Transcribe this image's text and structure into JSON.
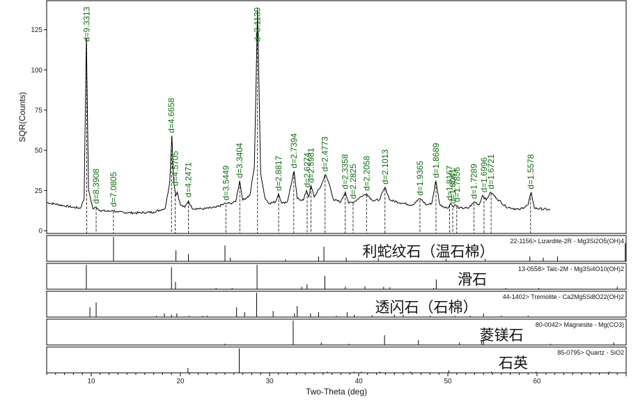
{
  "chart_data": {
    "type": "line",
    "xlabel": "Two-Theta (deg)",
    "ylabel": "SQR(Counts)",
    "xlim": [
      5,
      70
    ],
    "ylim": [
      0,
      140
    ],
    "x_ticks": [
      10,
      20,
      30,
      40,
      50,
      60
    ],
    "y_ticks": [
      0,
      25,
      50,
      75,
      100,
      125
    ],
    "pattern": [
      [
        5.0,
        17.5
      ],
      [
        6.0,
        16.5
      ],
      [
        7.0,
        15.5
      ],
      [
        8.0,
        14.5
      ],
      [
        8.8,
        14.0
      ],
      [
        9.2,
        20
      ],
      [
        9.45,
        120
      ],
      [
        9.7,
        25
      ],
      [
        10.2,
        13.5
      ],
      [
        10.55,
        14.8
      ],
      [
        11,
        12.5
      ],
      [
        12,
        12
      ],
      [
        12.4,
        12.6
      ],
      [
        13,
        11.5
      ],
      [
        15,
        11
      ],
      [
        17,
        11.5
      ],
      [
        18.3,
        14
      ],
      [
        18.8,
        30
      ],
      [
        19.05,
        59
      ],
      [
        19.25,
        30
      ],
      [
        19.5,
        22
      ],
      [
        19.65,
        24
      ],
      [
        20.0,
        16
      ],
      [
        20.5,
        14.5
      ],
      [
        20.9,
        18.5
      ],
      [
        21.3,
        14
      ],
      [
        22.5,
        13.5
      ],
      [
        24,
        14.5
      ],
      [
        25.1,
        17
      ],
      [
        25.6,
        17
      ],
      [
        26.2,
        18
      ],
      [
        26.65,
        31
      ],
      [
        27.0,
        19
      ],
      [
        27.8,
        22
      ],
      [
        28.3,
        40
      ],
      [
        28.65,
        138
      ],
      [
        29.0,
        36
      ],
      [
        29.5,
        20
      ],
      [
        30,
        17
      ],
      [
        30.7,
        18
      ],
      [
        31.0,
        23
      ],
      [
        31.4,
        17
      ],
      [
        32,
        18
      ],
      [
        32.75,
        37
      ],
      [
        33.1,
        20
      ],
      [
        33.8,
        19
      ],
      [
        34.15,
        25
      ],
      [
        34.4,
        21
      ],
      [
        34.65,
        28
      ],
      [
        35.0,
        21
      ],
      [
        35.8,
        28
      ],
      [
        36.25,
        35
      ],
      [
        36.7,
        29
      ],
      [
        37.2,
        19
      ],
      [
        38.0,
        18
      ],
      [
        38.5,
        24
      ],
      [
        38.9,
        17
      ],
      [
        39.5,
        18
      ],
      [
        40.2,
        21
      ],
      [
        40.9,
        23
      ],
      [
        41.5,
        19
      ],
      [
        42.3,
        19
      ],
      [
        42.95,
        27
      ],
      [
        43.5,
        19
      ],
      [
        45,
        17
      ],
      [
        46.0,
        16
      ],
      [
        46.9,
        20
      ],
      [
        47.6,
        16
      ],
      [
        48.2,
        17
      ],
      [
        48.65,
        31
      ],
      [
        49.1,
        16
      ],
      [
        50.0,
        14
      ],
      [
        50.3,
        17
      ],
      [
        50.55,
        15
      ],
      [
        50.85,
        16
      ],
      [
        51.3,
        14
      ],
      [
        52.3,
        14
      ],
      [
        53.0,
        18
      ],
      [
        53.5,
        16
      ],
      [
        53.9,
        22
      ],
      [
        54.3,
        19
      ],
      [
        54.8,
        24
      ],
      [
        55.5,
        20
      ],
      [
        56.5,
        15
      ],
      [
        58,
        13
      ],
      [
        59.0,
        16
      ],
      [
        59.35,
        24
      ],
      [
        59.7,
        14
      ],
      [
        61.5,
        13
      ]
    ],
    "peaks": [
      {
        "two_theta": 9.49,
        "d": "d=9.3313",
        "height": 120
      },
      {
        "two_theta": 10.55,
        "d": "d=8.3908",
        "height": 15
      },
      {
        "two_theta": 12.49,
        "d": "d=7.0805",
        "height": 13
      },
      {
        "two_theta": 19.0,
        "d": "d=4.6658",
        "height": 59
      },
      {
        "two_theta": 19.41,
        "d": "d=4.5705",
        "height": 26
      },
      {
        "two_theta": 20.9,
        "d": "d=4.2471",
        "height": 19
      },
      {
        "two_theta": 25.1,
        "d": "d=3.5449",
        "height": 17
      },
      {
        "two_theta": 26.66,
        "d": "d=3.3404",
        "height": 31
      },
      {
        "two_theta": 28.65,
        "d": "d=3.1139",
        "height": 138
      },
      {
        "two_theta": 31.02,
        "d": "d=2.8817",
        "height": 23
      },
      {
        "two_theta": 32.72,
        "d": "d=2.7394",
        "height": 37
      },
      {
        "two_theta": 34.22,
        "d": "d=2.6274",
        "height": 25
      },
      {
        "two_theta": 34.64,
        "d": "d=2.5981",
        "height": 28
      },
      {
        "two_theta": 36.23,
        "d": "d=2.4773",
        "height": 35
      },
      {
        "two_theta": 38.49,
        "d": "d=2.3358",
        "height": 24
      },
      {
        "two_theta": 39.37,
        "d": "d=2.2825",
        "height": 18
      },
      {
        "two_theta": 40.88,
        "d": "d=2.2058",
        "height": 23
      },
      {
        "two_theta": 42.95,
        "d": "d=2.1013",
        "height": 27
      },
      {
        "two_theta": 46.87,
        "d": "d=1.9365",
        "height": 20
      },
      {
        "two_theta": 48.67,
        "d": "d=1.8689",
        "height": 31
      },
      {
        "two_theta": 50.2,
        "d": "d=1.8167",
        "height": 17
      },
      {
        "two_theta": 50.55,
        "d": "d=1.8041",
        "height": 15
      },
      {
        "two_theta": 51.0,
        "d": "d=1.7856",
        "height": 16
      },
      {
        "two_theta": 52.92,
        "d": "d=1.7289",
        "height": 18
      },
      {
        "two_theta": 54.06,
        "d": "d=1.6996",
        "height": 22
      },
      {
        "two_theta": 54.85,
        "d": "d=1.6721",
        "height": 24
      },
      {
        "two_theta": 59.28,
        "d": "d=1.5578",
        "height": 24
      }
    ],
    "reference_panels": [
      {
        "name": "利蛇纹石（温石棉）",
        "ref": "22-1156> Lizardite-2R - Mg3Si2O5(OH)4",
        "sticks": [
          [
            12.5,
            100
          ],
          [
            19.5,
            45
          ],
          [
            20.9,
            30
          ],
          [
            25.0,
            65
          ],
          [
            25.6,
            15
          ],
          [
            31.8,
            8
          ],
          [
            35.5,
            20
          ],
          [
            36.1,
            60
          ],
          [
            38.6,
            15
          ],
          [
            42.2,
            15
          ],
          [
            49.8,
            10
          ],
          [
            54.2,
            10
          ],
          [
            59.2,
            20
          ],
          [
            60.7,
            15
          ],
          [
            62.3,
            20
          ],
          [
            69.9,
            75
          ]
        ]
      },
      {
        "name": "滑石",
        "ref": "13-0558> Talc-2M - Mg3Si4O10(OH)2",
        "sticks": [
          [
            9.45,
            100
          ],
          [
            19.0,
            90
          ],
          [
            19.45,
            30
          ],
          [
            24.0,
            5
          ],
          [
            25.8,
            5
          ],
          [
            28.6,
            100
          ],
          [
            33.6,
            10
          ],
          [
            34.2,
            20
          ],
          [
            36.2,
            55
          ],
          [
            38.5,
            10
          ],
          [
            40.7,
            12
          ],
          [
            42.8,
            10
          ],
          [
            43.5,
            8
          ],
          [
            48.4,
            5
          ],
          [
            48.7,
            40
          ],
          [
            56.5,
            5
          ],
          [
            60.2,
            5
          ],
          [
            69.0,
            10
          ]
        ]
      },
      {
        "name": "透闪石（石棉）",
        "ref": "44-1402> Tremolite - Ca2Mg5Si8O22(OH)2",
        "sticks": [
          [
            9.85,
            40
          ],
          [
            10.55,
            60
          ],
          [
            17.3,
            5
          ],
          [
            18.2,
            15
          ],
          [
            19.0,
            10
          ],
          [
            19.6,
            15
          ],
          [
            21.0,
            5
          ],
          [
            22.5,
            5
          ],
          [
            23.0,
            5
          ],
          [
            26.3,
            40
          ],
          [
            27.2,
            20
          ],
          [
            28.55,
            100
          ],
          [
            30.4,
            25
          ],
          [
            32.8,
            15
          ],
          [
            33.1,
            45
          ],
          [
            34.6,
            15
          ],
          [
            35.5,
            20
          ],
          [
            37.5,
            5
          ],
          [
            38.7,
            20
          ],
          [
            39.5,
            10
          ],
          [
            41.5,
            8
          ],
          [
            44.0,
            10
          ],
          [
            45.0,
            10
          ],
          [
            48.0,
            5
          ],
          [
            50.8,
            5
          ],
          [
            52.5,
            5
          ],
          [
            54.0,
            15
          ],
          [
            56.0,
            5
          ],
          [
            59.0,
            5
          ]
        ]
      },
      {
        "name": "菱镁石",
        "ref": "80-0042> Magnesite - Mg(CO3)",
        "sticks": [
          [
            25.0,
            5
          ],
          [
            32.65,
            100
          ],
          [
            35.8,
            10
          ],
          [
            38.9,
            5
          ],
          [
            42.9,
            40
          ],
          [
            46.7,
            20
          ],
          [
            51.3,
            10
          ],
          [
            53.8,
            20
          ],
          [
            54.0,
            25
          ],
          [
            61.5,
            5
          ],
          [
            68.6,
            10
          ]
        ]
      },
      {
        "name": "石英",
        "ref": "85-0795> Quartz - SiO2",
        "sticks": [
          [
            20.85,
            20
          ],
          [
            26.6,
            100
          ],
          [
            36.5,
            5
          ],
          [
            39.5,
            5
          ],
          [
            40.3,
            5
          ],
          [
            42.4,
            5
          ],
          [
            45.8,
            5
          ],
          [
            50.1,
            10
          ],
          [
            54.9,
            5
          ],
          [
            59.9,
            5
          ],
          [
            68.1,
            5
          ]
        ]
      }
    ],
    "colors": {
      "pattern": "#000000",
      "peak_labels": "#0d6b0d",
      "dashes": "#000000"
    }
  }
}
